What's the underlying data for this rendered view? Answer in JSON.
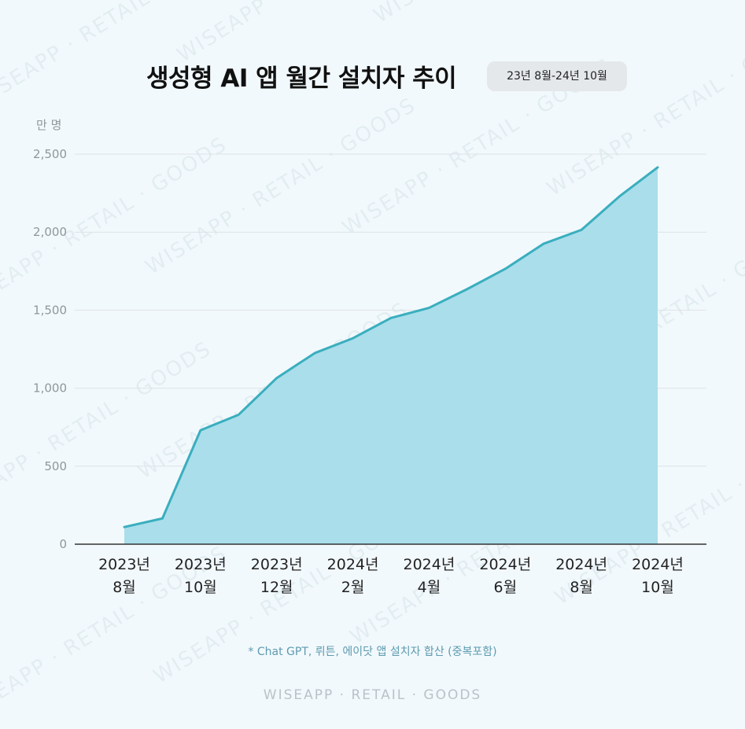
{
  "header": {
    "title": "생성형 AI 앱 월간 설치자 추이",
    "period_badge": "23년 8월-24년 10월"
  },
  "y_unit_label": "만 명",
  "footnote": "* Chat GPT, 뤼튼, 에이닷 앱 설치자 합산 (중복포함)",
  "brand": "WISEAPP · RETAIL · GOODS",
  "watermark_text": "WISEAPP · RETAIL · GOODS",
  "colors": {
    "line": "#3aaebe",
    "area": "#a9deea",
    "grid": "#dde3e6",
    "axis": "#333333"
  },
  "chart_data": {
    "type": "area",
    "x": [
      "2023-08",
      "2023-09",
      "2023-10",
      "2023-11",
      "2023-12",
      "2024-01",
      "2024-02",
      "2024-03",
      "2024-04",
      "2024-05",
      "2024-06",
      "2024-07",
      "2024-08",
      "2024-09",
      "2024-10"
    ],
    "series": [
      {
        "values": [
          110,
          165,
          730,
          830,
          1065,
          1225,
          1320,
          1450,
          1515,
          1635,
          1765,
          1925,
          2015,
          2230,
          2415
        ]
      }
    ],
    "x_tick_labels": [
      {
        "year": "2023년",
        "month": "8월",
        "index": 0
      },
      {
        "year": "2023년",
        "month": "10월",
        "index": 2
      },
      {
        "year": "2023년",
        "month": "12월",
        "index": 4
      },
      {
        "year": "2024년",
        "month": "2월",
        "index": 6
      },
      {
        "year": "2024년",
        "month": "4월",
        "index": 8
      },
      {
        "year": "2024년",
        "month": "6월",
        "index": 10
      },
      {
        "year": "2024년",
        "month": "8월",
        "index": 12
      },
      {
        "year": "2024년",
        "month": "10월",
        "index": 14
      }
    ],
    "y_ticks": [
      "0",
      "500",
      "1,000",
      "1,500",
      "2,000",
      "2,500"
    ],
    "ylim": [
      0,
      2500
    ],
    "ylabel": "만 명",
    "grid": true
  }
}
